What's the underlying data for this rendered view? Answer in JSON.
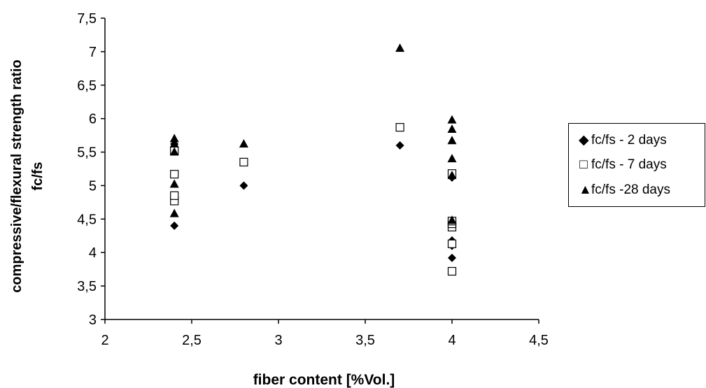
{
  "chart_data": {
    "type": "scatter",
    "xlabel": "fiber  content  [%Vol.]",
    "ylabel_line1": "compressive/flexural  strength  ratio",
    "ylabel_line2": "fc/fs",
    "xlim": [
      2,
      4.5
    ],
    "ylim": [
      3,
      7.5
    ],
    "x_ticks": [
      "2",
      "2,5",
      "3",
      "3,5",
      "4",
      "4,5"
    ],
    "y_ticks": [
      "3",
      "3,5",
      "4",
      "4,5",
      "5",
      "5,5",
      "6",
      "6,5",
      "7",
      "7,5"
    ],
    "grid": false,
    "legend_position": "right",
    "series": [
      {
        "name": "fc/fs - 2 days",
        "marker": "diamond",
        "color": "#000000",
        "points": [
          [
            2.4,
            4.4
          ],
          [
            2.4,
            4.82
          ],
          [
            2.4,
            5.55
          ],
          [
            2.4,
            5.62
          ],
          [
            2.8,
            5.0
          ],
          [
            3.7,
            5.6
          ],
          [
            4.0,
            3.92
          ],
          [
            4.0,
            4.1
          ],
          [
            4.0,
            4.18
          ],
          [
            4.0,
            4.38
          ],
          [
            4.0,
            4.42
          ],
          [
            4.0,
            4.45
          ],
          [
            4.0,
            5.12
          ]
        ]
      },
      {
        "name": "fc/fs - 7 days",
        "marker": "open-square",
        "color": "#000000",
        "points": [
          [
            2.4,
            4.77
          ],
          [
            2.4,
            4.85
          ],
          [
            2.4,
            5.17
          ],
          [
            2.4,
            5.52
          ],
          [
            2.8,
            5.35
          ],
          [
            3.7,
            5.87
          ],
          [
            4.0,
            3.72
          ],
          [
            4.0,
            4.13
          ],
          [
            4.0,
            4.38
          ],
          [
            4.0,
            4.43
          ],
          [
            4.0,
            4.47
          ],
          [
            4.0,
            5.18
          ]
        ]
      },
      {
        "name": "fc/fs -28 days",
        "marker": "triangle",
        "color": "#000000",
        "points": [
          [
            2.4,
            4.58
          ],
          [
            2.4,
            5.02
          ],
          [
            2.4,
            5.5
          ],
          [
            2.4,
            5.62
          ],
          [
            2.4,
            5.7
          ],
          [
            2.8,
            5.62
          ],
          [
            3.7,
            7.05
          ],
          [
            4.0,
            4.48
          ],
          [
            4.0,
            5.15
          ],
          [
            4.0,
            5.4
          ],
          [
            4.0,
            5.67
          ],
          [
            4.0,
            5.84
          ],
          [
            4.0,
            5.98
          ]
        ]
      }
    ]
  }
}
